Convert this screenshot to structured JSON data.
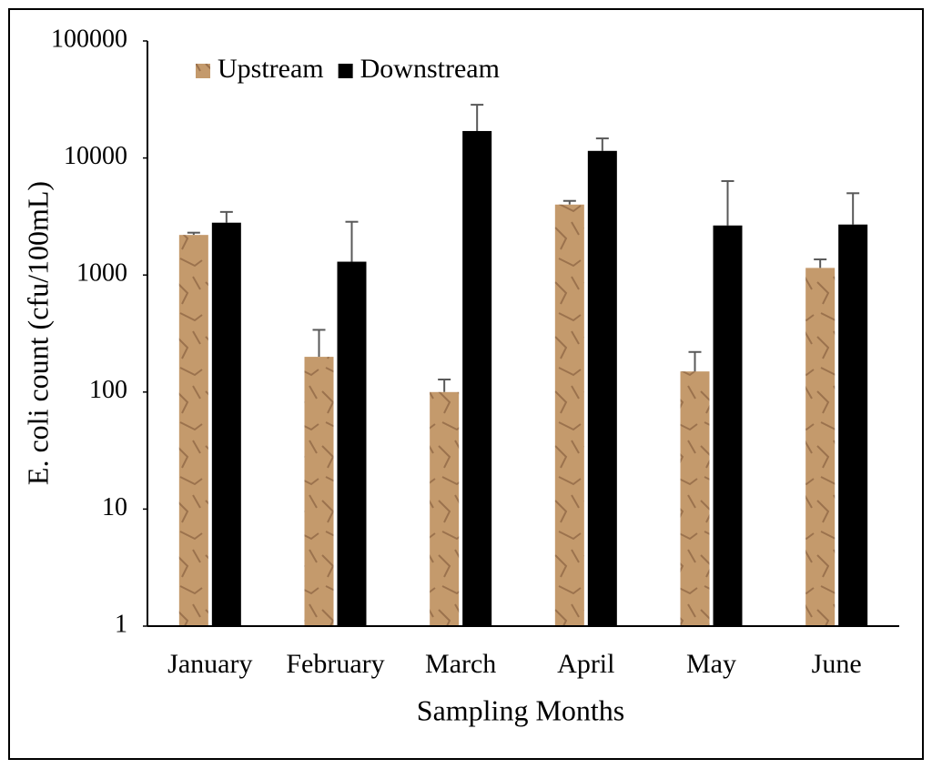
{
  "chart_data": {
    "type": "bar",
    "x_label": "Sampling Months",
    "y_label": "E. coli count (cfu/100mL)",
    "categories": [
      "January",
      "February",
      "March",
      "April",
      "May",
      "June"
    ],
    "series": [
      {
        "name": "Upstream",
        "color": "#c49a6c",
        "values": [
          2200,
          200,
          100,
          4000,
          150,
          1150
        ],
        "errors": [
          100,
          140,
          28,
          300,
          70,
          210
        ]
      },
      {
        "name": "Downstream",
        "color": "#000000",
        "values": [
          2800,
          1300,
          17000,
          11500,
          2650,
          2700
        ],
        "errors": [
          660,
          1550,
          11500,
          3200,
          3700,
          2300
        ]
      }
    ],
    "log_scale": true,
    "ylim": [
      1,
      100000
    ],
    "yticks": [
      1,
      10,
      100,
      1000,
      10000,
      100000
    ],
    "legend": "top-left"
  }
}
